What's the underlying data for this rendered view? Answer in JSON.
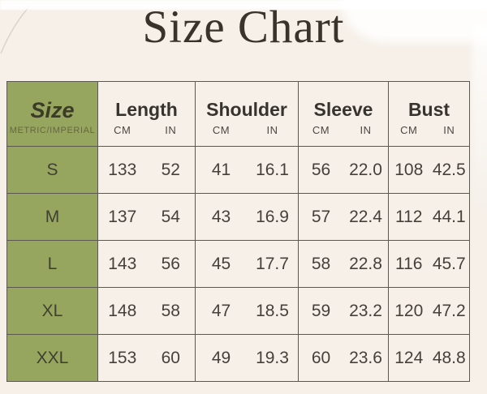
{
  "page": {
    "title": "Size Chart"
  },
  "colors": {
    "background": "#f6f0e9",
    "accent_green": "#97a65f",
    "title_text": "#3a332c",
    "table_text": "#45413a",
    "border": "#5c584f"
  },
  "table": {
    "size_column": {
      "label": "Size",
      "sublabel": "METRIC/IMPERIAL"
    },
    "measurement_columns": [
      {
        "label": "Length",
        "units": [
          "CM",
          "IN"
        ]
      },
      {
        "label": "Shoulder",
        "units": [
          "CM",
          "IN"
        ]
      },
      {
        "label": "Sleeve",
        "units": [
          "CM",
          "IN"
        ]
      },
      {
        "label": "Bust",
        "units": [
          "CM",
          "IN"
        ]
      }
    ],
    "rows": [
      {
        "size": "S",
        "length": [
          "133",
          "52"
        ],
        "shoulder": [
          "41",
          "16.1"
        ],
        "sleeve": [
          "56",
          "22.0"
        ],
        "bust": [
          "108",
          "42.5"
        ]
      },
      {
        "size": "M",
        "length": [
          "137",
          "54"
        ],
        "shoulder": [
          "43",
          "16.9"
        ],
        "sleeve": [
          "57",
          "22.4"
        ],
        "bust": [
          "112",
          "44.1"
        ]
      },
      {
        "size": "L",
        "length": [
          "143",
          "56"
        ],
        "shoulder": [
          "45",
          "17.7"
        ],
        "sleeve": [
          "58",
          "22.8"
        ],
        "bust": [
          "116",
          "45.7"
        ]
      },
      {
        "size": "XL",
        "length": [
          "148",
          "58"
        ],
        "shoulder": [
          "47",
          "18.5"
        ],
        "sleeve": [
          "59",
          "23.2"
        ],
        "bust": [
          "120",
          "47.2"
        ]
      },
      {
        "size": "XXL",
        "length": [
          "153",
          "60"
        ],
        "shoulder": [
          "49",
          "19.3"
        ],
        "sleeve": [
          "60",
          "23.6"
        ],
        "bust": [
          "124",
          "48.8"
        ]
      }
    ]
  },
  "chart_data": {
    "type": "table",
    "title": "Size Chart",
    "columns": [
      "Size",
      "Length CM",
      "Length IN",
      "Shoulder CM",
      "Shoulder IN",
      "Sleeve CM",
      "Sleeve IN",
      "Bust CM",
      "Bust IN"
    ],
    "rows": [
      [
        "S",
        133,
        52,
        41,
        16.1,
        56,
        22.0,
        108,
        42.5
      ],
      [
        "M",
        137,
        54,
        43,
        16.9,
        57,
        22.4,
        112,
        44.1
      ],
      [
        "L",
        143,
        56,
        45,
        17.7,
        58,
        22.8,
        116,
        45.7
      ],
      [
        "XL",
        148,
        58,
        47,
        18.5,
        59,
        23.2,
        120,
        47.2
      ],
      [
        "XXL",
        153,
        60,
        49,
        19.3,
        60,
        23.6,
        124,
        48.8
      ]
    ]
  }
}
